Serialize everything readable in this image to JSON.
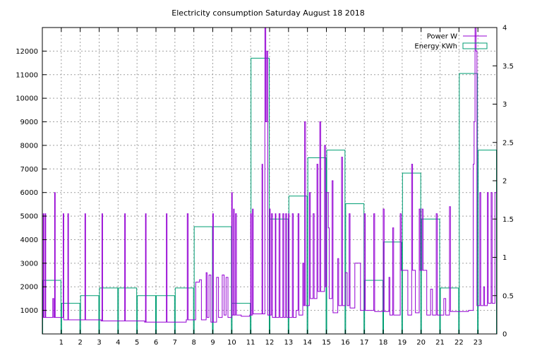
{
  "chart_data": {
    "type": "line",
    "title": "Electricity consumption Saturday August 18 2018",
    "xlabel": "",
    "ylabel": "",
    "y2label": "",
    "grid": true,
    "legend_position": "top-right",
    "x": {
      "range": [
        0,
        24
      ],
      "ticks": [
        1,
        2,
        3,
        4,
        5,
        6,
        7,
        8,
        9,
        10,
        11,
        12,
        13,
        14,
        15,
        16,
        17,
        18,
        19,
        20,
        21,
        22,
        23
      ]
    },
    "y_left": {
      "range": [
        0,
        13000
      ],
      "ticks": [
        1000,
        2000,
        3000,
        4000,
        5000,
        6000,
        7000,
        8000,
        9000,
        10000,
        11000,
        12000
      ]
    },
    "y_right": {
      "range": [
        0,
        4
      ],
      "ticks": [
        "0",
        "0.5",
        "1",
        "1.5",
        "2",
        "2.5",
        "3",
        "3.5",
        "4"
      ]
    },
    "series": [
      {
        "name": "Power W",
        "axis": "left",
        "color": "#9400d3",
        "style": "steps",
        "points": [
          [
            0.0,
            700
          ],
          [
            0.05,
            5100
          ],
          [
            0.08,
            700
          ],
          [
            0.15,
            5100
          ],
          [
            0.18,
            700
          ],
          [
            0.5,
            700
          ],
          [
            0.55,
            1500
          ],
          [
            0.6,
            700
          ],
          [
            0.65,
            6000
          ],
          [
            0.68,
            700
          ],
          [
            1.05,
            700
          ],
          [
            1.1,
            5100
          ],
          [
            1.13,
            600
          ],
          [
            1.3,
            600
          ],
          [
            1.35,
            5100
          ],
          [
            1.38,
            600
          ],
          [
            2.2,
            600
          ],
          [
            2.25,
            5100
          ],
          [
            2.28,
            600
          ],
          [
            3.1,
            550
          ],
          [
            3.15,
            5100
          ],
          [
            3.18,
            550
          ],
          [
            4.3,
            550
          ],
          [
            4.35,
            5100
          ],
          [
            4.38,
            550
          ],
          [
            5.4,
            500
          ],
          [
            5.45,
            5100
          ],
          [
            5.48,
            500
          ],
          [
            6.5,
            500
          ],
          [
            6.55,
            5100
          ],
          [
            6.58,
            500
          ],
          [
            7.6,
            600
          ],
          [
            7.65,
            5100
          ],
          [
            7.7,
            600
          ],
          [
            8.0,
            600
          ],
          [
            8.1,
            2200
          ],
          [
            8.3,
            2300
          ],
          [
            8.4,
            600
          ],
          [
            8.6,
            600
          ],
          [
            8.65,
            2600
          ],
          [
            8.7,
            700
          ],
          [
            8.8,
            2500
          ],
          [
            8.9,
            500
          ],
          [
            9.0,
            5100
          ],
          [
            9.03,
            500
          ],
          [
            9.2,
            2400
          ],
          [
            9.3,
            700
          ],
          [
            9.5,
            2500
          ],
          [
            9.6,
            800
          ],
          [
            9.7,
            2400
          ],
          [
            9.8,
            700
          ],
          [
            10.0,
            6000
          ],
          [
            10.03,
            800
          ],
          [
            10.1,
            5300
          ],
          [
            10.13,
            800
          ],
          [
            10.2,
            5100
          ],
          [
            10.25,
            800
          ],
          [
            10.5,
            750
          ],
          [
            10.7,
            750
          ],
          [
            10.95,
            800
          ],
          [
            11.0,
            5100
          ],
          [
            11.03,
            800
          ],
          [
            11.1,
            5300
          ],
          [
            11.13,
            850
          ],
          [
            11.5,
            850
          ],
          [
            11.6,
            7200
          ],
          [
            11.63,
            850
          ],
          [
            11.75,
            13000
          ],
          [
            11.8,
            9000
          ],
          [
            11.85,
            12000
          ],
          [
            11.9,
            800
          ],
          [
            12.0,
            5300
          ],
          [
            12.03,
            800
          ],
          [
            12.1,
            5100
          ],
          [
            12.15,
            700
          ],
          [
            12.3,
            5100
          ],
          [
            12.33,
            700
          ],
          [
            12.5,
            5100
          ],
          [
            12.55,
            700
          ],
          [
            12.7,
            5100
          ],
          [
            12.75,
            700
          ],
          [
            12.85,
            5100
          ],
          [
            12.9,
            700
          ],
          [
            13.0,
            5100
          ],
          [
            13.03,
            700
          ],
          [
            13.2,
            5100
          ],
          [
            13.25,
            700
          ],
          [
            13.4,
            1000
          ],
          [
            13.5,
            5100
          ],
          [
            13.55,
            800
          ],
          [
            13.75,
            3000
          ],
          [
            13.8,
            1200
          ],
          [
            13.85,
            9000
          ],
          [
            13.9,
            1200
          ],
          [
            14.1,
            6000
          ],
          [
            14.15,
            1500
          ],
          [
            14.3,
            5100
          ],
          [
            14.35,
            1500
          ],
          [
            14.5,
            7200
          ],
          [
            14.55,
            1800
          ],
          [
            14.65,
            9000
          ],
          [
            14.7,
            1800
          ],
          [
            14.9,
            8000
          ],
          [
            14.95,
            2000
          ],
          [
            15.0,
            6000
          ],
          [
            15.1,
            4500
          ],
          [
            15.15,
            1500
          ],
          [
            15.3,
            6500
          ],
          [
            15.35,
            900
          ],
          [
            15.6,
            3200
          ],
          [
            15.65,
            1200
          ],
          [
            15.8,
            7500
          ],
          [
            15.85,
            1200
          ],
          [
            16.0,
            2600
          ],
          [
            16.1,
            1200
          ],
          [
            16.2,
            5100
          ],
          [
            16.25,
            1100
          ],
          [
            16.5,
            3000
          ],
          [
            16.7,
            3000
          ],
          [
            16.8,
            1000
          ],
          [
            17.0,
            5100
          ],
          [
            17.05,
            1000
          ],
          [
            17.3,
            1000
          ],
          [
            17.5,
            5100
          ],
          [
            17.55,
            950
          ],
          [
            17.8,
            950
          ],
          [
            18.0,
            5300
          ],
          [
            18.05,
            950
          ],
          [
            18.3,
            2400
          ],
          [
            18.35,
            800
          ],
          [
            18.5,
            4500
          ],
          [
            18.55,
            800
          ],
          [
            18.9,
            5100
          ],
          [
            18.95,
            2700
          ],
          [
            19.2,
            2700
          ],
          [
            19.3,
            800
          ],
          [
            19.5,
            7200
          ],
          [
            19.55,
            2700
          ],
          [
            19.7,
            900
          ],
          [
            19.9,
            5300
          ],
          [
            19.95,
            2700
          ],
          [
            20.05,
            5300
          ],
          [
            20.1,
            2700
          ],
          [
            20.3,
            800
          ],
          [
            20.5,
            1900
          ],
          [
            20.6,
            800
          ],
          [
            20.8,
            5100
          ],
          [
            20.85,
            800
          ],
          [
            21.2,
            1500
          ],
          [
            21.3,
            800
          ],
          [
            21.5,
            5400
          ],
          [
            21.55,
            950
          ],
          [
            22.0,
            950
          ],
          [
            22.5,
            1000
          ],
          [
            22.75,
            7200
          ],
          [
            22.8,
            9000
          ],
          [
            22.85,
            13000
          ],
          [
            22.9,
            12000
          ],
          [
            22.95,
            1200
          ],
          [
            23.1,
            6000
          ],
          [
            23.15,
            1200
          ],
          [
            23.3,
            2000
          ],
          [
            23.35,
            1200
          ],
          [
            23.5,
            6000
          ],
          [
            23.55,
            1300
          ],
          [
            23.7,
            6000
          ],
          [
            23.75,
            1300
          ],
          [
            23.9,
            6000
          ],
          [
            24.0,
            1300
          ]
        ]
      },
      {
        "name": "Energy KWh",
        "axis": "right",
        "color": "#009e73",
        "style": "boxes",
        "boxes": [
          {
            "hour": 0,
            "value": 0.7
          },
          {
            "hour": 1,
            "value": 0.4
          },
          {
            "hour": 2,
            "value": 0.5
          },
          {
            "hour": 3,
            "value": 0.6
          },
          {
            "hour": 4,
            "value": 0.6
          },
          {
            "hour": 5,
            "value": 0.5
          },
          {
            "hour": 6,
            "value": 0.5
          },
          {
            "hour": 7,
            "value": 0.6
          },
          {
            "hour": 8,
            "value": 1.4
          },
          {
            "hour": 9,
            "value": 1.4
          },
          {
            "hour": 10,
            "value": 0.4
          },
          {
            "hour": 11,
            "value": 3.6
          },
          {
            "hour": 12,
            "value": 1.5
          },
          {
            "hour": 13,
            "value": 1.8
          },
          {
            "hour": 14,
            "value": 2.3
          },
          {
            "hour": 15,
            "value": 2.4
          },
          {
            "hour": 16,
            "value": 1.7
          },
          {
            "hour": 17,
            "value": 0.7
          },
          {
            "hour": 18,
            "value": 1.2
          },
          {
            "hour": 19,
            "value": 2.1
          },
          {
            "hour": 20,
            "value": 1.5
          },
          {
            "hour": 21,
            "value": 0.6
          },
          {
            "hour": 22,
            "value": 3.4
          },
          {
            "hour": 23,
            "value": 2.4
          }
        ]
      }
    ]
  }
}
